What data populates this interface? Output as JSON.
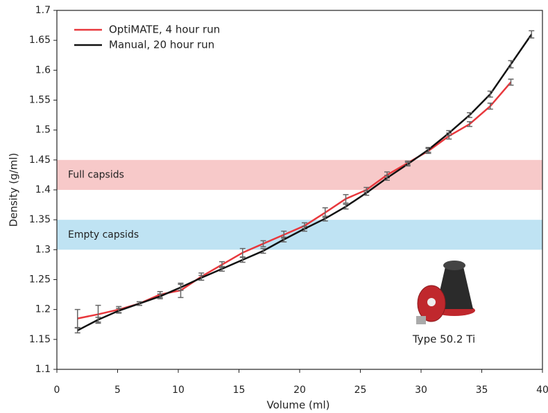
{
  "chart_data": {
    "type": "line",
    "xlabel": "Volume (ml)",
    "ylabel": "Density (g/ml)",
    "x": [
      1.7,
      3.4,
      5.1,
      6.8,
      8.5,
      10.2,
      11.9,
      13.6,
      15.3,
      17.0,
      18.7,
      20.4,
      22.1,
      23.8,
      25.5,
      27.2,
      28.9,
      30.6,
      32.3,
      34.0,
      35.7,
      37.4,
      39.1
    ],
    "series": [
      {
        "name": "OptiMATE, 4 hour run",
        "color": "#e8383d",
        "values": [
          1.185,
          1.192,
          1.2,
          1.21,
          1.225,
          1.232,
          1.255,
          1.275,
          1.295,
          1.31,
          1.325,
          1.34,
          1.362,
          1.385,
          1.4,
          1.425,
          1.445,
          1.465,
          1.49,
          1.51,
          1.54,
          1.58,
          null
        ],
        "errors": [
          0.015,
          0.015,
          0.005,
          0.003,
          0.005,
          0.012,
          0.006,
          0.005,
          0.007,
          0.005,
          0.006,
          0.005,
          0.008,
          0.007,
          0.004,
          0.005,
          0.003,
          0.004,
          0.005,
          0.004,
          0.005,
          0.005,
          null
        ]
      },
      {
        "name": "Manual, 20 hour run",
        "color": "#111111",
        "values": [
          1.165,
          1.183,
          1.198,
          1.21,
          1.222,
          1.237,
          1.253,
          1.268,
          1.283,
          1.298,
          1.317,
          1.335,
          1.352,
          1.372,
          1.395,
          1.42,
          1.443,
          1.467,
          1.495,
          1.525,
          1.56,
          1.61,
          1.66
        ],
        "errors": [
          0.004,
          0.004,
          0.004,
          0.003,
          0.004,
          0.005,
          0.004,
          0.004,
          0.004,
          0.004,
          0.004,
          0.004,
          0.004,
          0.004,
          0.004,
          0.004,
          0.003,
          0.004,
          0.004,
          0.004,
          0.005,
          0.006,
          0.006
        ]
      }
    ],
    "bands": [
      {
        "label": "Full capsids",
        "range": [
          1.4,
          1.45
        ],
        "color": "#f7c9c9"
      },
      {
        "label": "Empty capsids",
        "range": [
          1.3,
          1.35
        ],
        "color": "#bfe3f3"
      }
    ],
    "annotation": "Type 50.2 Ti",
    "xlim": [
      0,
      40
    ],
    "xticks": [
      0,
      5,
      10,
      15,
      20,
      25,
      30,
      35,
      40
    ],
    "ylim": [
      1.1,
      1.7
    ],
    "yticks": [
      1.1,
      1.15,
      1.2,
      1.25,
      1.3,
      1.35,
      1.4,
      1.45,
      1.5,
      1.55,
      1.6,
      1.65,
      1.7
    ],
    "legend": "upper left",
    "errorbar_color": "#666666"
  }
}
